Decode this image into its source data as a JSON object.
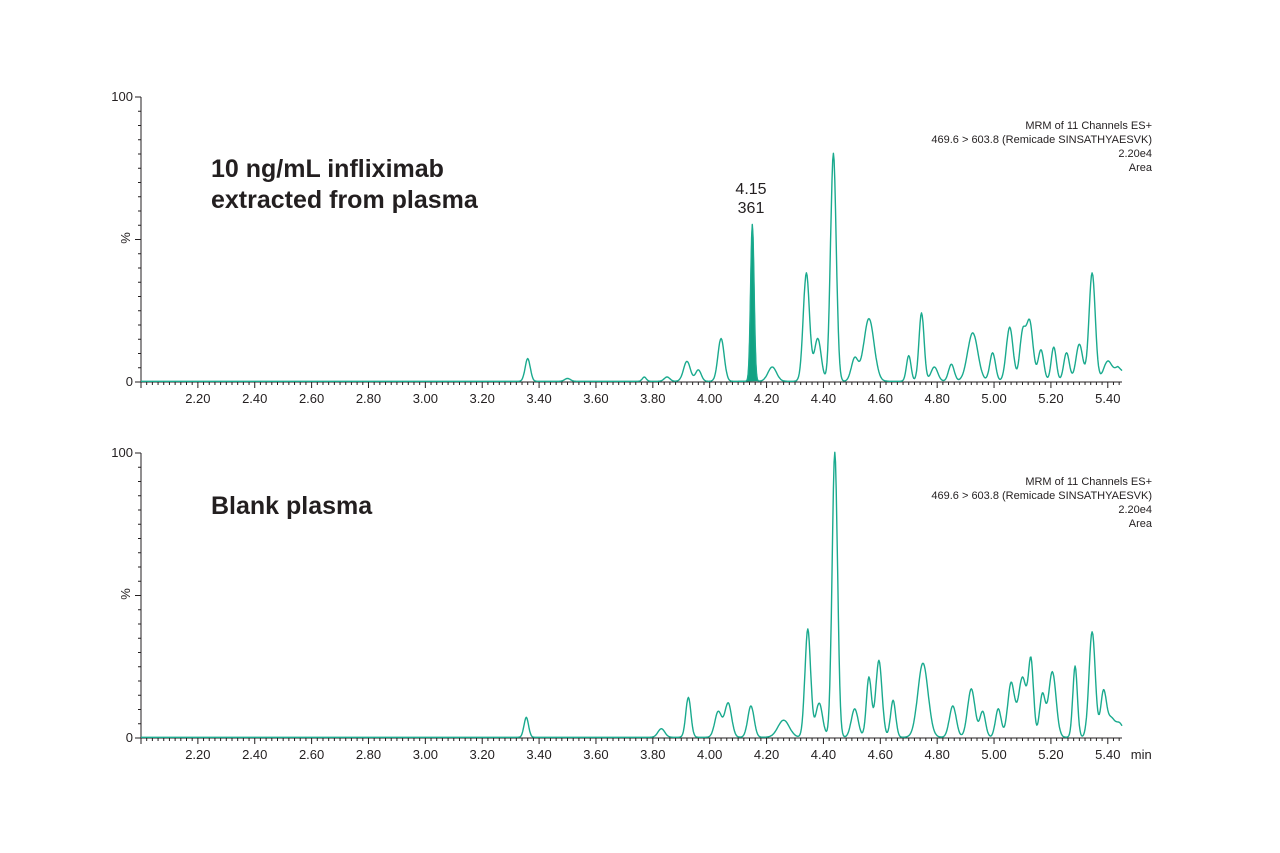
{
  "colors": {
    "trace": "#1aaa8e",
    "peak_fill": "#12a283",
    "axis": "#231f20",
    "text": "#231f20"
  },
  "chart_data": [
    {
      "type": "line",
      "label": "10 ng/mL infliximab extracted from plasma",
      "label_lines": [
        "10 ng/mL infliximab",
        "extracted from plasma"
      ],
      "info": [
        "MRM of 11 Channels ES+",
        "469.6 > 603.8 (Remicade SINSATHYAESVK)",
        "2.20e4",
        "Area"
      ],
      "xlim": [
        2.0,
        5.45
      ],
      "ylim": [
        0,
        100
      ],
      "x_ticks": [
        "2.20",
        "2.40",
        "2.60",
        "2.80",
        "3.00",
        "3.20",
        "3.40",
        "3.60",
        "3.80",
        "4.00",
        "4.20",
        "4.40",
        "4.60",
        "4.80",
        "5.00",
        "5.20",
        "5.40"
      ],
      "y_ticks": [
        "100",
        "%",
        "0"
      ],
      "xlabel": "",
      "integrated_peak": {
        "rt": "4.15",
        "area": "361",
        "x_start": 4.1,
        "x_end": 4.17,
        "apex": 4.15,
        "apex_y": 55
      },
      "peaks": [
        [
          3.36,
          8,
          0.009
        ],
        [
          3.5,
          1,
          0.01
        ],
        [
          3.77,
          1.5,
          0.007
        ],
        [
          3.85,
          1.5,
          0.01
        ],
        [
          3.92,
          7,
          0.012
        ],
        [
          3.96,
          4,
          0.01
        ],
        [
          4.04,
          15,
          0.011
        ],
        [
          4.15,
          55,
          0.006
        ],
        [
          4.22,
          5,
          0.015
        ],
        [
          4.34,
          38,
          0.011
        ],
        [
          4.38,
          15,
          0.012
        ],
        [
          4.435,
          80,
          0.01
        ],
        [
          4.51,
          8,
          0.012
        ],
        [
          4.56,
          22,
          0.018
        ],
        [
          4.7,
          9,
          0.008
        ],
        [
          4.745,
          24,
          0.009
        ],
        [
          4.79,
          5,
          0.012
        ],
        [
          4.85,
          6,
          0.01
        ],
        [
          4.925,
          17,
          0.018
        ],
        [
          4.995,
          10,
          0.01
        ],
        [
          5.055,
          19,
          0.012
        ],
        [
          5.1,
          16,
          0.01
        ],
        [
          5.125,
          21,
          0.012
        ],
        [
          5.165,
          11,
          0.01
        ],
        [
          5.21,
          12,
          0.009
        ],
        [
          5.255,
          10,
          0.01
        ],
        [
          5.3,
          13,
          0.012
        ],
        [
          5.345,
          38,
          0.011
        ],
        [
          5.4,
          7,
          0.015
        ],
        [
          5.44,
          5,
          0.015
        ]
      ],
      "end_value": 4
    },
    {
      "type": "line",
      "label": "Blank plasma",
      "label_lines": [
        "Blank plasma"
      ],
      "info": [
        "MRM of 11 Channels ES+",
        "469.6 > 603.8 (Remicade SINSATHYAESVK)",
        "2.20e4",
        "Area"
      ],
      "xlim": [
        2.0,
        5.45
      ],
      "ylim": [
        0,
        100
      ],
      "x_ticks": [
        "2.20",
        "2.40",
        "2.60",
        "2.80",
        "3.00",
        "3.20",
        "3.40",
        "3.60",
        "3.80",
        "4.00",
        "4.20",
        "4.40",
        "4.60",
        "4.80",
        "5.00",
        "5.20",
        "5.40"
      ],
      "y_ticks": [
        "100",
        "%",
        "0"
      ],
      "xlabel": "min",
      "peaks": [
        [
          3.355,
          7,
          0.008
        ],
        [
          3.83,
          3,
          0.012
        ],
        [
          3.925,
          14,
          0.009
        ],
        [
          4.03,
          9,
          0.012
        ],
        [
          4.065,
          12,
          0.012
        ],
        [
          4.145,
          11,
          0.011
        ],
        [
          4.26,
          6,
          0.02
        ],
        [
          4.345,
          38,
          0.01
        ],
        [
          4.385,
          12,
          0.012
        ],
        [
          4.44,
          100,
          0.0095
        ],
        [
          4.51,
          10,
          0.012
        ],
        [
          4.56,
          21,
          0.009
        ],
        [
          4.595,
          27,
          0.011
        ],
        [
          4.645,
          13,
          0.009
        ],
        [
          4.75,
          26,
          0.018
        ],
        [
          4.855,
          11,
          0.012
        ],
        [
          4.92,
          17,
          0.013
        ],
        [
          4.96,
          9,
          0.01
        ],
        [
          5.015,
          10,
          0.01
        ],
        [
          5.06,
          19,
          0.012
        ],
        [
          5.1,
          21,
          0.014
        ],
        [
          5.13,
          26,
          0.009
        ],
        [
          5.17,
          15,
          0.01
        ],
        [
          5.205,
          23,
          0.013
        ],
        [
          5.285,
          25,
          0.008
        ],
        [
          5.345,
          37,
          0.011
        ],
        [
          5.385,
          16,
          0.01
        ],
        [
          5.41,
          6,
          0.012
        ],
        [
          5.44,
          5,
          0.015
        ]
      ],
      "end_value": 5
    }
  ]
}
